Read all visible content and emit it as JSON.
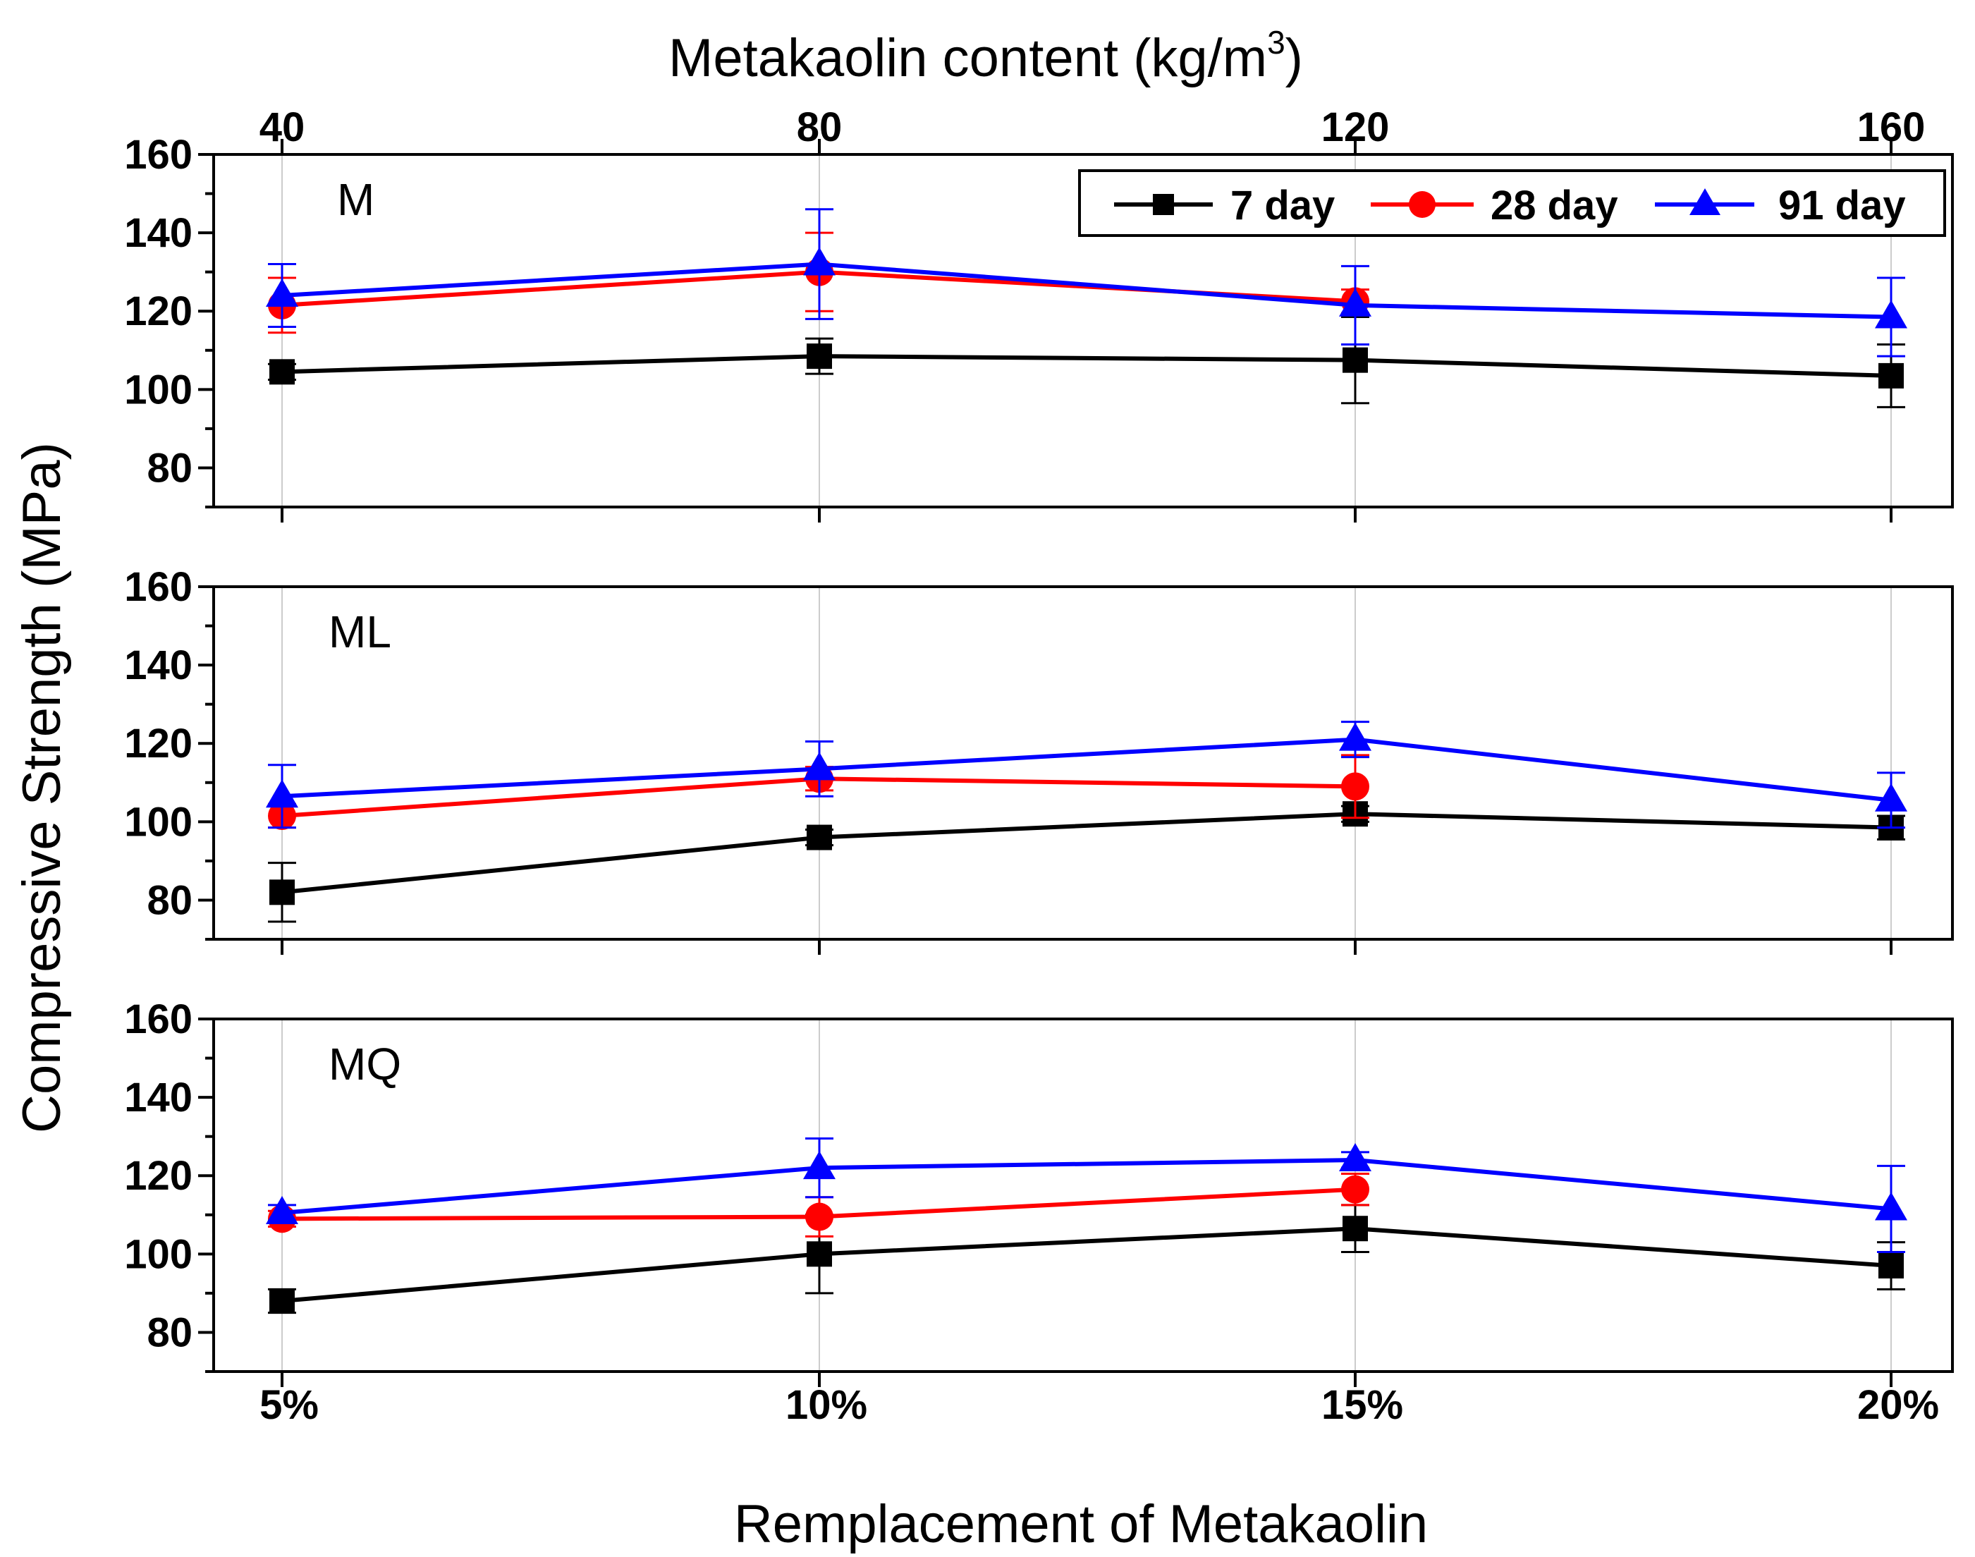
{
  "chart_data": {
    "type": "line",
    "xlabel": "Remplacement of Metakaolin",
    "ylabel": "Compressive Strength (MPa)",
    "top_axis": {
      "label_main": "Metakaolin content (kg/m",
      "label_sup": "3",
      "label_close": ")",
      "ticks": [
        "40",
        "80",
        "120",
        "160"
      ]
    },
    "categories": [
      "5%",
      "10%",
      "15%",
      "20%"
    ],
    "ylim": [
      70,
      160
    ],
    "yticks": [
      80,
      100,
      120,
      140,
      160
    ],
    "yticks_labels": [
      "80",
      "100",
      "120",
      "140",
      "160"
    ],
    "grid": "vertical at categories",
    "legend": {
      "placement": "top-right of first panel",
      "entries": [
        "7 day",
        "28 day",
        "91 day"
      ]
    },
    "series_styles": [
      {
        "name": "7 day",
        "color": "#000000",
        "marker": "square"
      },
      {
        "name": "28 day",
        "color": "#ff0000",
        "marker": "circle"
      },
      {
        "name": "91 day",
        "color": "#0000ff",
        "marker": "triangle"
      }
    ],
    "panels": [
      {
        "label": "M",
        "series": [
          {
            "name": "7 day",
            "values": [
              104.5,
              108.5,
              107.5,
              103.5
            ],
            "errors": [
              2,
              4.5,
              11,
              8
            ]
          },
          {
            "name": "28 day",
            "values": [
              121.5,
              130,
              122.5,
              null
            ],
            "errors": [
              7,
              10,
              3,
              null
            ]
          },
          {
            "name": "91 day",
            "values": [
              124,
              132,
              121.5,
              118.5
            ],
            "errors": [
              8,
              14,
              10,
              10
            ]
          }
        ]
      },
      {
        "label": "ML",
        "series": [
          {
            "name": "7 day",
            "values": [
              82,
              96,
              102,
              98.5
            ],
            "errors": [
              7.5,
              2,
              2,
              3
            ]
          },
          {
            "name": "28 day",
            "values": [
              101.5,
              111,
              109,
              null
            ],
            "errors": [
              3,
              3,
              8,
              null
            ]
          },
          {
            "name": "91 day",
            "values": [
              106.5,
              113.5,
              121,
              105.5
            ],
            "errors": [
              8,
              7,
              4.5,
              7
            ]
          }
        ]
      },
      {
        "label": "MQ",
        "series": [
          {
            "name": "7 day",
            "values": [
              88,
              100,
              106.5,
              97
            ],
            "errors": [
              3,
              10,
              6,
              6
            ]
          },
          {
            "name": "28 day",
            "values": [
              109,
              109.5,
              116.5,
              null
            ],
            "errors": [
              2,
              5,
              4,
              null
            ]
          },
          {
            "name": "91 day",
            "values": [
              110.5,
              122,
              124,
              111.5
            ],
            "errors": [
              2,
              7.5,
              2,
              11
            ]
          }
        ]
      }
    ]
  }
}
